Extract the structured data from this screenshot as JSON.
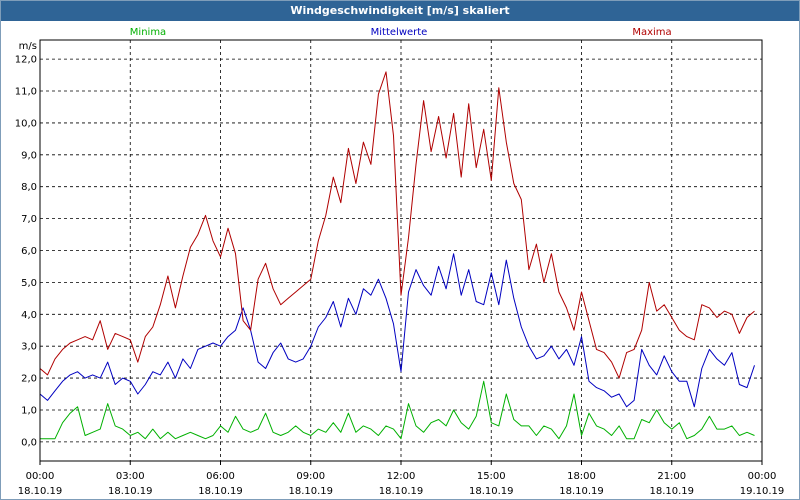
{
  "chart_data": {
    "type": "line",
    "title": "Windgeschwindigkeit [m/s] skaliert",
    "ylabel": "m/s",
    "xlabel": "",
    "ylim": [
      -0.6,
      12.6
    ],
    "y_ticks": [
      "0,0",
      "1,0",
      "2,0",
      "3,0",
      "4,0",
      "5,0",
      "6,0",
      "7,0",
      "8,0",
      "9,0",
      "10,0",
      "11,0",
      "12,0"
    ],
    "x_ticks": [
      {
        "time": "00:00",
        "date": "18.10.19"
      },
      {
        "time": "03:00",
        "date": "18.10.19"
      },
      {
        "time": "06:00",
        "date": "18.10.19"
      },
      {
        "time": "09:00",
        "date": "18.10.19"
      },
      {
        "time": "12:00",
        "date": "18.10.19"
      },
      {
        "time": "15:00",
        "date": "18.10.19"
      },
      {
        "time": "18:00",
        "date": "18.10.19"
      },
      {
        "time": "21:00",
        "date": "18.10.19"
      },
      {
        "time": "00:00",
        "date": "19.10.19"
      }
    ],
    "x_start": "18.10.19 00:00",
    "x_end": "19.10.19 00:00",
    "grid": true,
    "legend_position": "top",
    "series": [
      {
        "name": "Minima",
        "color": "#00b000",
        "points": [
          [
            "00:00",
            0.1
          ],
          [
            "00:15",
            0.1
          ],
          [
            "00:30",
            0.1
          ],
          [
            "00:45",
            0.6
          ],
          [
            "01:00",
            0.9
          ],
          [
            "01:15",
            1.1
          ],
          [
            "01:30",
            0.2
          ],
          [
            "01:45",
            0.3
          ],
          [
            "02:00",
            0.4
          ],
          [
            "02:15",
            1.2
          ],
          [
            "02:30",
            0.5
          ],
          [
            "02:45",
            0.4
          ],
          [
            "03:00",
            0.2
          ],
          [
            "03:15",
            0.3
          ],
          [
            "03:30",
            0.1
          ],
          [
            "03:45",
            0.4
          ],
          [
            "04:00",
            0.1
          ],
          [
            "04:15",
            0.3
          ],
          [
            "04:30",
            0.1
          ],
          [
            "04:45",
            0.2
          ],
          [
            "05:00",
            0.3
          ],
          [
            "05:15",
            0.2
          ],
          [
            "05:30",
            0.1
          ],
          [
            "05:45",
            0.2
          ],
          [
            "06:00",
            0.5
          ],
          [
            "06:15",
            0.3
          ],
          [
            "06:30",
            0.8
          ],
          [
            "06:45",
            0.4
          ],
          [
            "07:00",
            0.3
          ],
          [
            "07:15",
            0.4
          ],
          [
            "07:30",
            0.9
          ],
          [
            "07:45",
            0.3
          ],
          [
            "08:00",
            0.2
          ],
          [
            "08:15",
            0.3
          ],
          [
            "08:30",
            0.5
          ],
          [
            "08:45",
            0.3
          ],
          [
            "09:00",
            0.2
          ],
          [
            "09:15",
            0.4
          ],
          [
            "09:30",
            0.3
          ],
          [
            "09:45",
            0.6
          ],
          [
            "10:00",
            0.3
          ],
          [
            "10:15",
            0.9
          ],
          [
            "10:30",
            0.3
          ],
          [
            "10:45",
            0.5
          ],
          [
            "11:00",
            0.4
          ],
          [
            "11:15",
            0.2
          ],
          [
            "11:30",
            0.5
          ],
          [
            "11:45",
            0.4
          ],
          [
            "12:00",
            0.1
          ],
          [
            "12:15",
            1.2
          ],
          [
            "12:30",
            0.5
          ],
          [
            "12:45",
            0.3
          ],
          [
            "13:00",
            0.6
          ],
          [
            "13:15",
            0.7
          ],
          [
            "13:30",
            0.5
          ],
          [
            "13:45",
            1.0
          ],
          [
            "14:00",
            0.6
          ],
          [
            "14:15",
            0.4
          ],
          [
            "14:30",
            0.8
          ],
          [
            "14:45",
            1.9
          ],
          [
            "15:00",
            0.6
          ],
          [
            "15:15",
            0.5
          ],
          [
            "15:30",
            1.5
          ],
          [
            "15:45",
            0.7
          ],
          [
            "16:00",
            0.5
          ],
          [
            "16:15",
            0.5
          ],
          [
            "16:30",
            0.2
          ],
          [
            "16:45",
            0.5
          ],
          [
            "17:00",
            0.4
          ],
          [
            "17:15",
            0.1
          ],
          [
            "17:30",
            0.5
          ],
          [
            "17:45",
            1.5
          ],
          [
            "18:00",
            0.2
          ],
          [
            "18:15",
            0.9
          ],
          [
            "18:30",
            0.5
          ],
          [
            "18:45",
            0.4
          ],
          [
            "19:00",
            0.2
          ],
          [
            "19:15",
            0.5
          ],
          [
            "19:30",
            0.1
          ],
          [
            "19:45",
            0.1
          ],
          [
            "20:00",
            0.7
          ],
          [
            "20:15",
            0.6
          ],
          [
            "20:30",
            1.0
          ],
          [
            "20:45",
            0.6
          ],
          [
            "21:00",
            0.4
          ],
          [
            "21:15",
            0.6
          ],
          [
            "21:30",
            0.1
          ],
          [
            "21:45",
            0.2
          ],
          [
            "22:00",
            0.4
          ],
          [
            "22:15",
            0.8
          ],
          [
            "22:30",
            0.4
          ],
          [
            "22:45",
            0.4
          ],
          [
            "23:00",
            0.5
          ],
          [
            "23:15",
            0.2
          ],
          [
            "23:30",
            0.3
          ],
          [
            "23:45",
            0.2
          ]
        ]
      },
      {
        "name": "Mittelwerte",
        "color": "#0000c0",
        "points": [
          [
            "00:00",
            1.5
          ],
          [
            "00:15",
            1.3
          ],
          [
            "00:30",
            1.6
          ],
          [
            "00:45",
            1.9
          ],
          [
            "01:00",
            2.1
          ],
          [
            "01:15",
            2.2
          ],
          [
            "01:30",
            2.0
          ],
          [
            "01:45",
            2.1
          ],
          [
            "02:00",
            2.0
          ],
          [
            "02:15",
            2.5
          ],
          [
            "02:30",
            1.8
          ],
          [
            "02:45",
            2.0
          ],
          [
            "03:00",
            1.9
          ],
          [
            "03:15",
            1.5
          ],
          [
            "03:30",
            1.8
          ],
          [
            "03:45",
            2.2
          ],
          [
            "04:00",
            2.1
          ],
          [
            "04:15",
            2.5
          ],
          [
            "04:30",
            2.0
          ],
          [
            "04:45",
            2.6
          ],
          [
            "05:00",
            2.3
          ],
          [
            "05:15",
            2.9
          ],
          [
            "05:30",
            3.0
          ],
          [
            "05:45",
            3.1
          ],
          [
            "06:00",
            3.0
          ],
          [
            "06:15",
            3.3
          ],
          [
            "06:30",
            3.5
          ],
          [
            "06:45",
            4.2
          ],
          [
            "07:00",
            3.5
          ],
          [
            "07:15",
            2.5
          ],
          [
            "07:30",
            2.3
          ],
          [
            "07:45",
            2.8
          ],
          [
            "08:00",
            3.1
          ],
          [
            "08:15",
            2.6
          ],
          [
            "08:30",
            2.5
          ],
          [
            "08:45",
            2.6
          ],
          [
            "09:00",
            3.0
          ],
          [
            "09:15",
            3.6
          ],
          [
            "09:30",
            3.9
          ],
          [
            "09:45",
            4.4
          ],
          [
            "10:00",
            3.6
          ],
          [
            "10:15",
            4.5
          ],
          [
            "10:30",
            4.0
          ],
          [
            "10:45",
            4.8
          ],
          [
            "11:00",
            4.6
          ],
          [
            "11:15",
            5.1
          ],
          [
            "11:30",
            4.5
          ],
          [
            "11:45",
            3.7
          ],
          [
            "12:00",
            2.2
          ],
          [
            "12:15",
            4.7
          ],
          [
            "12:30",
            5.4
          ],
          [
            "12:45",
            4.9
          ],
          [
            "13:00",
            4.6
          ],
          [
            "13:15",
            5.5
          ],
          [
            "13:30",
            4.8
          ],
          [
            "13:45",
            5.9
          ],
          [
            "14:00",
            4.6
          ],
          [
            "14:15",
            5.4
          ],
          [
            "14:30",
            4.4
          ],
          [
            "14:45",
            4.3
          ],
          [
            "15:00",
            5.3
          ],
          [
            "15:15",
            4.3
          ],
          [
            "15:30",
            5.7
          ],
          [
            "15:45",
            4.5
          ],
          [
            "16:00",
            3.6
          ],
          [
            "16:15",
            3.0
          ],
          [
            "16:30",
            2.6
          ],
          [
            "16:45",
            2.7
          ],
          [
            "17:00",
            3.0
          ],
          [
            "17:15",
            2.6
          ],
          [
            "17:30",
            2.9
          ],
          [
            "17:45",
            2.4
          ],
          [
            "18:00",
            3.3
          ],
          [
            "18:15",
            1.9
          ],
          [
            "18:30",
            1.7
          ],
          [
            "18:45",
            1.6
          ],
          [
            "19:00",
            1.4
          ],
          [
            "19:15",
            1.5
          ],
          [
            "19:30",
            1.1
          ],
          [
            "19:45",
            1.3
          ],
          [
            "20:00",
            2.9
          ],
          [
            "20:15",
            2.4
          ],
          [
            "20:30",
            2.1
          ],
          [
            "20:45",
            2.7
          ],
          [
            "21:00",
            2.2
          ],
          [
            "21:15",
            1.9
          ],
          [
            "21:30",
            1.9
          ],
          [
            "21:45",
            1.1
          ],
          [
            "22:00",
            2.3
          ],
          [
            "22:15",
            2.9
          ],
          [
            "22:30",
            2.6
          ],
          [
            "22:45",
            2.4
          ],
          [
            "23:00",
            2.8
          ],
          [
            "23:15",
            1.8
          ],
          [
            "23:30",
            1.7
          ],
          [
            "23:45",
            2.4
          ]
        ]
      },
      {
        "name": "Maxima",
        "color": "#b00000",
        "points": [
          [
            "00:00",
            2.3
          ],
          [
            "00:15",
            2.1
          ],
          [
            "00:30",
            2.6
          ],
          [
            "00:45",
            2.9
          ],
          [
            "01:00",
            3.1
          ],
          [
            "01:15",
            3.2
          ],
          [
            "01:30",
            3.3
          ],
          [
            "01:45",
            3.2
          ],
          [
            "02:00",
            3.8
          ],
          [
            "02:15",
            2.9
          ],
          [
            "02:30",
            3.4
          ],
          [
            "02:45",
            3.3
          ],
          [
            "03:00",
            3.2
          ],
          [
            "03:15",
            2.5
          ],
          [
            "03:30",
            3.3
          ],
          [
            "03:45",
            3.6
          ],
          [
            "04:00",
            4.3
          ],
          [
            "04:15",
            5.2
          ],
          [
            "04:30",
            4.2
          ],
          [
            "04:45",
            5.2
          ],
          [
            "05:00",
            6.1
          ],
          [
            "05:15",
            6.5
          ],
          [
            "05:30",
            7.1
          ],
          [
            "05:45",
            6.3
          ],
          [
            "06:00",
            5.8
          ],
          [
            "06:15",
            6.7
          ],
          [
            "06:30",
            5.9
          ],
          [
            "06:45",
            3.8
          ],
          [
            "07:00",
            3.5
          ],
          [
            "07:15",
            5.1
          ],
          [
            "07:30",
            5.6
          ],
          [
            "07:45",
            4.8
          ],
          [
            "08:00",
            4.3
          ],
          [
            "08:15",
            4.5
          ],
          [
            "08:30",
            4.7
          ],
          [
            "08:45",
            4.9
          ],
          [
            "09:00",
            5.1
          ],
          [
            "09:15",
            6.3
          ],
          [
            "09:30",
            7.1
          ],
          [
            "09:45",
            8.3
          ],
          [
            "10:00",
            7.5
          ],
          [
            "10:15",
            9.2
          ],
          [
            "10:30",
            8.1
          ],
          [
            "10:45",
            9.4
          ],
          [
            "11:00",
            8.7
          ],
          [
            "11:15",
            10.9
          ],
          [
            "11:30",
            11.6
          ],
          [
            "11:45",
            9.6
          ],
          [
            "12:00",
            4.6
          ],
          [
            "12:15",
            6.4
          ],
          [
            "12:30",
            8.7
          ],
          [
            "12:45",
            10.7
          ],
          [
            "13:00",
            9.1
          ],
          [
            "13:15",
            10.2
          ],
          [
            "13:30",
            8.9
          ],
          [
            "13:45",
            10.3
          ],
          [
            "14:00",
            8.3
          ],
          [
            "14:15",
            10.6
          ],
          [
            "14:30",
            8.6
          ],
          [
            "14:45",
            9.8
          ],
          [
            "15:00",
            8.2
          ],
          [
            "15:15",
            11.1
          ],
          [
            "15:30",
            9.4
          ],
          [
            "15:45",
            8.1
          ],
          [
            "16:00",
            7.6
          ],
          [
            "16:15",
            5.4
          ],
          [
            "16:30",
            6.2
          ],
          [
            "16:45",
            5.0
          ],
          [
            "17:00",
            5.9
          ],
          [
            "17:15",
            4.7
          ],
          [
            "17:30",
            4.2
          ],
          [
            "17:45",
            3.5
          ],
          [
            "18:00",
            4.7
          ],
          [
            "18:15",
            3.8
          ],
          [
            "18:30",
            2.9
          ],
          [
            "18:45",
            2.8
          ],
          [
            "19:00",
            2.5
          ],
          [
            "19:15",
            2.0
          ],
          [
            "19:30",
            2.8
          ],
          [
            "19:45",
            2.9
          ],
          [
            "20:00",
            3.5
          ],
          [
            "20:15",
            5.0
          ],
          [
            "20:30",
            4.1
          ],
          [
            "20:45",
            4.3
          ],
          [
            "21:00",
            3.9
          ],
          [
            "21:15",
            3.5
          ],
          [
            "21:30",
            3.3
          ],
          [
            "21:45",
            3.2
          ],
          [
            "22:00",
            4.3
          ],
          [
            "22:15",
            4.2
          ],
          [
            "22:30",
            3.9
          ],
          [
            "22:45",
            4.1
          ],
          [
            "23:00",
            4.0
          ],
          [
            "23:15",
            3.4
          ],
          [
            "23:30",
            3.9
          ],
          [
            "23:45",
            4.1
          ]
        ]
      }
    ]
  }
}
